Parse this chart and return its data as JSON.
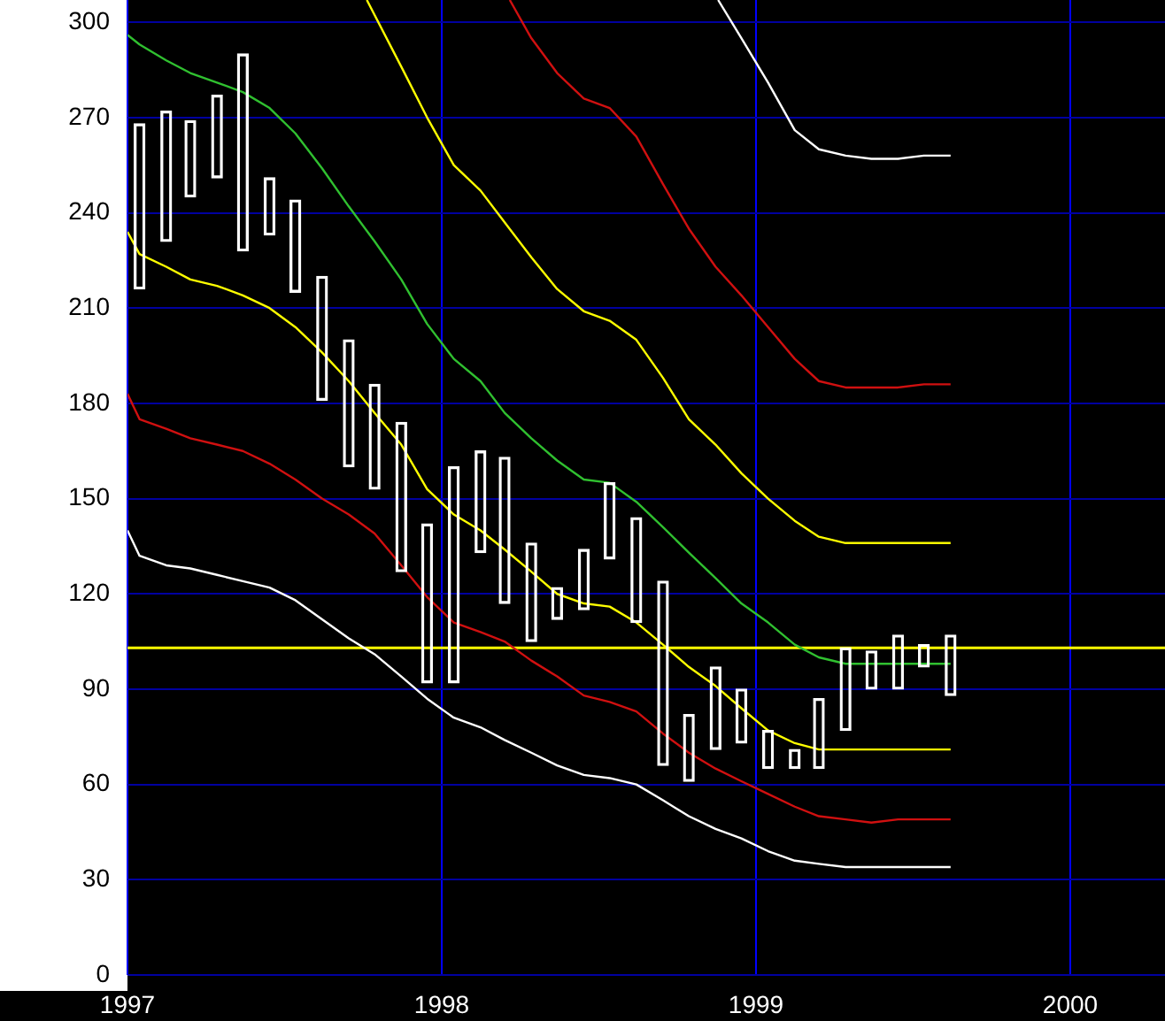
{
  "chart_data": {
    "type": "bar",
    "x": [
      "1997-01-15",
      "1997-02-15",
      "1997-03-15",
      "1997-04-15",
      "1997-05-15",
      "1997-06-15",
      "1997-07-15",
      "1997-08-15",
      "1997-09-15",
      "1997-10-15",
      "1997-11-15",
      "1997-12-15",
      "1998-01-15",
      "1998-02-15",
      "1998-03-15",
      "1998-04-15",
      "1998-05-15",
      "1998-06-15",
      "1998-07-15",
      "1998-08-15",
      "1998-09-15",
      "1998-10-15",
      "1998-11-15",
      "1998-12-15",
      "1999-01-15",
      "1999-02-15",
      "1999-03-15",
      "1999-04-15",
      "1999-05-15",
      "1999-06-15",
      "1999-07-15",
      "1999-08-15"
    ],
    "xlim": [
      "1997-01-01",
      "2000-04-20"
    ],
    "xticks": [
      "1997",
      "1998",
      "1999",
      "2000"
    ],
    "ylim": [
      0,
      307
    ],
    "yticks": [
      0,
      30,
      60,
      90,
      120,
      150,
      180,
      210,
      240,
      270,
      300
    ],
    "grid": true,
    "series": [
      {
        "color": "#ffffff",
        "base": [
          216,
          231,
          245,
          251,
          228,
          233,
          215,
          181,
          160,
          153,
          127,
          92,
          92,
          133,
          117,
          105,
          112,
          115,
          131,
          111,
          66,
          61,
          71,
          73,
          65,
          65,
          65,
          77,
          90,
          90,
          97,
          88
        ],
        "values": [
          52,
          41,
          24,
          26,
          62,
          18,
          29,
          39,
          40,
          33,
          47,
          50,
          68,
          32,
          46,
          31,
          10,
          19,
          24,
          33,
          58,
          21,
          26,
          17,
          12,
          6,
          22,
          26,
          12,
          17,
          7,
          19
        ]
      },
      {
        "type": "line",
        "color": "#ffffff",
        "x": [
          "1997-01-01",
          "1997-01-15",
          "1997-02-15",
          "1997-03-15",
          "1997-04-15",
          "1997-05-15",
          "1997-06-15",
          "1997-07-15",
          "1997-08-15",
          "1997-09-15",
          "1997-10-15",
          "1997-11-15",
          "1997-12-15",
          "1998-01-15",
          "1998-02-15",
          "1998-03-15",
          "1998-04-15",
          "1998-05-15",
          "1998-06-15",
          "1998-07-15",
          "1998-08-15",
          "1998-09-15",
          "1998-10-15",
          "1998-11-15",
          "1998-12-15",
          "1999-01-15",
          "1999-02-15",
          "1999-03-15",
          "1999-04-15",
          "1999-05-15",
          "1999-06-15",
          "1999-07-15",
          "1999-08-15"
        ],
        "values": [
          140,
          132,
          129,
          128,
          126,
          124,
          122,
          118,
          112,
          106,
          101,
          94,
          87,
          81,
          78,
          74,
          70,
          66,
          63,
          62,
          60,
          55,
          50,
          46,
          43,
          39,
          36,
          35,
          34,
          34,
          34,
          34,
          34
        ]
      },
      {
        "type": "line",
        "color": "#d01010",
        "x": [
          "1997-01-01",
          "1997-01-15",
          "1997-02-15",
          "1997-03-15",
          "1997-04-15",
          "1997-05-15",
          "1997-06-15",
          "1997-07-15",
          "1997-08-15",
          "1997-09-15",
          "1997-10-15",
          "1997-11-15",
          "1997-12-15",
          "1998-01-15",
          "1998-02-15",
          "1998-03-15",
          "1998-04-15",
          "1998-05-15",
          "1998-06-15",
          "1998-07-15",
          "1998-08-15",
          "1998-09-15",
          "1998-10-15",
          "1998-11-15",
          "1998-12-15",
          "1999-01-15",
          "1999-02-15",
          "1999-03-15",
          "1999-04-15",
          "1999-05-15",
          "1999-06-15",
          "1999-07-15",
          "1999-08-15"
        ],
        "values": [
          183,
          175,
          172,
          169,
          167,
          165,
          161,
          156,
          150,
          145,
          139,
          129,
          119,
          111,
          108,
          105,
          99,
          94,
          88,
          86,
          83,
          76,
          70,
          65,
          61,
          57,
          53,
          50,
          49,
          48,
          49,
          49,
          49
        ]
      },
      {
        "type": "line",
        "color": "#ffff00",
        "x": [
          "1997-01-01",
          "1997-01-15",
          "1997-02-15",
          "1997-03-15",
          "1997-04-15",
          "1997-05-15",
          "1997-06-15",
          "1997-07-15",
          "1997-08-15",
          "1997-09-15",
          "1997-10-15",
          "1997-11-15",
          "1997-12-15",
          "1998-01-15",
          "1998-02-15",
          "1998-03-15",
          "1998-04-15",
          "1998-05-15",
          "1998-06-15",
          "1998-07-15",
          "1998-08-15",
          "1998-09-15",
          "1998-10-15",
          "1998-11-15",
          "1998-12-15",
          "1999-01-15",
          "1999-02-15",
          "1999-03-15",
          "1999-04-15",
          "1999-05-15",
          "1999-06-15",
          "1999-07-15",
          "1999-08-15"
        ],
        "values": [
          234,
          227,
          223,
          219,
          217,
          214,
          210,
          204,
          196,
          187,
          177,
          167,
          153,
          145,
          140,
          134,
          127,
          120,
          117,
          116,
          111,
          104,
          97,
          91,
          84,
          77,
          73,
          71,
          71,
          71,
          71,
          71,
          71
        ]
      },
      {
        "type": "line",
        "color": "#30c030",
        "x": [
          "1997-01-01",
          "1997-01-15",
          "1997-02-15",
          "1997-03-15",
          "1997-04-15",
          "1997-05-15",
          "1997-06-15",
          "1997-07-15",
          "1997-08-15",
          "1997-09-15",
          "1997-10-15",
          "1997-11-15",
          "1997-12-15",
          "1998-01-15",
          "1998-02-15",
          "1998-03-15",
          "1998-04-15",
          "1998-05-15",
          "1998-06-15",
          "1998-07-15",
          "1998-08-15",
          "1998-09-15",
          "1998-10-15",
          "1998-11-15",
          "1998-12-15",
          "1999-01-15",
          "1999-02-15",
          "1999-03-15",
          "1999-04-15",
          "1999-05-15",
          "1999-06-15",
          "1999-07-15",
          "1999-08-15"
        ],
        "values": [
          296,
          293,
          288,
          284,
          281,
          278,
          273,
          265,
          254,
          242,
          231,
          219,
          205,
          194,
          187,
          177,
          169,
          162,
          156,
          155,
          149,
          141,
          133,
          125,
          117,
          111,
          104,
          100,
          98,
          98,
          98,
          98,
          98
        ]
      },
      {
        "type": "line",
        "color": "#ffff00",
        "x": [
          "1997-10-06",
          "1997-11-15",
          "1997-12-15",
          "1998-01-15",
          "1998-02-15",
          "1998-03-15",
          "1998-04-15",
          "1998-05-15",
          "1998-06-15",
          "1998-07-15",
          "1998-08-15",
          "1998-09-15",
          "1998-10-15",
          "1998-11-15",
          "1998-12-15",
          "1999-01-15",
          "1999-02-15",
          "1999-03-15",
          "1999-04-15",
          "1999-05-15",
          "1999-06-15",
          "1999-07-15",
          "1999-08-15"
        ],
        "values": [
          307,
          286,
          270,
          255,
          247,
          237,
          226,
          216,
          209,
          206,
          200,
          188,
          175,
          167,
          158,
          150,
          143,
          138,
          136,
          136,
          136,
          136,
          136
        ]
      },
      {
        "type": "line",
        "color": "#d01010",
        "x": [
          "1998-03-21",
          "1998-04-15",
          "1998-05-15",
          "1998-06-15",
          "1998-07-15",
          "1998-08-15",
          "1998-09-15",
          "1998-10-15",
          "1998-11-15",
          "1998-12-15",
          "1999-01-15",
          "1999-02-15",
          "1999-03-15",
          "1999-04-15",
          "1999-05-15",
          "1999-06-15",
          "1999-07-15",
          "1999-08-15"
        ],
        "values": [
          307,
          295,
          284,
          276,
          273,
          264,
          249,
          235,
          223,
          214,
          204,
          194,
          187,
          185,
          185,
          185,
          186,
          186
        ]
      },
      {
        "type": "line",
        "color": "#ffffff",
        "x": [
          "1998-11-18",
          "1998-12-15",
          "1999-01-15",
          "1999-02-15",
          "1999-03-15",
          "1999-04-15",
          "1999-05-15",
          "1999-06-15",
          "1999-07-15",
          "1999-08-15"
        ],
        "values": [
          307,
          295,
          281,
          266,
          260,
          258,
          257,
          257,
          258,
          258
        ]
      }
    ],
    "ref_lines": [
      {
        "axis": "y",
        "value": 103,
        "color": "#ffff00"
      }
    ]
  }
}
